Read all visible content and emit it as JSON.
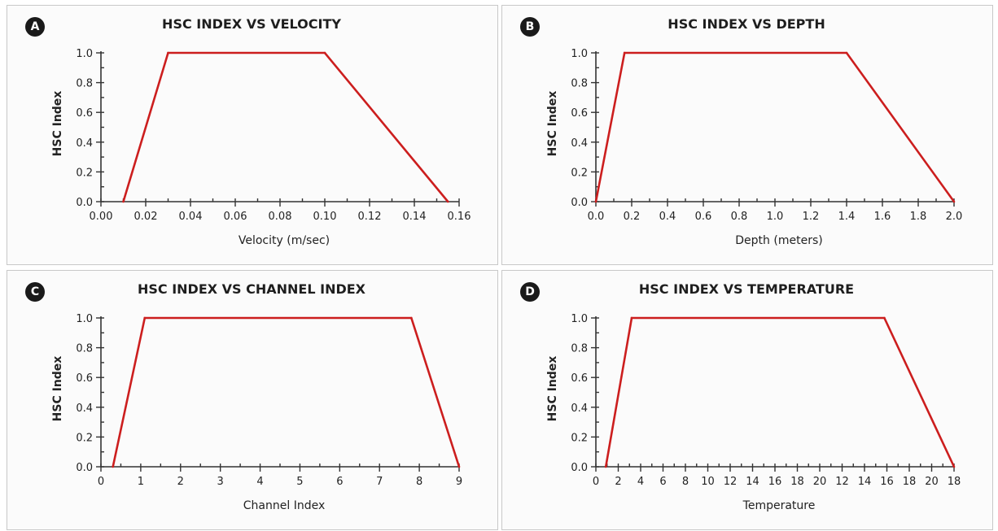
{
  "chart_data": [
    {
      "type": "line",
      "panel_label": "A",
      "title": "HSC INDEX VS VELOCITY",
      "xlabel": "Velocity (m/sec)",
      "ylabel": "HSC Index",
      "xlim": [
        0,
        0.16
      ],
      "ylim": [
        0,
        1.0
      ],
      "x_ticks": [
        "0.00",
        "0.02",
        "0.04",
        "0.06",
        "0.08",
        "0.10",
        "0.12",
        "0.14",
        "0.16"
      ],
      "y_ticks": [
        "0.0",
        "0.2",
        "0.4",
        "0.6",
        "0.8",
        "1.0"
      ],
      "x_minor_per_major": 2,
      "y_minor_per_major": 2,
      "grid": false,
      "line_color": "#cc1e1e",
      "series": [
        {
          "x": [
            0.01,
            0.03,
            0.1,
            0.155
          ],
          "y": [
            0.0,
            1.0,
            1.0,
            0.0
          ]
        }
      ]
    },
    {
      "type": "line",
      "panel_label": "B",
      "title": "HSC INDEX VS DEPTH",
      "xlabel": "Depth (meters)",
      "ylabel": "HSC Index",
      "xlim": [
        0,
        2.0
      ],
      "ylim": [
        0,
        1.0
      ],
      "x_ticks": [
        "0.0",
        "0.2",
        "0.4",
        "0.6",
        "0.8",
        "1.0",
        "1.2",
        "1.4",
        "1.6",
        "1.8",
        "2.0"
      ],
      "y_ticks": [
        "0.0",
        "0.2",
        "0.4",
        "0.6",
        "0.8",
        "1.0"
      ],
      "x_minor_per_major": 2,
      "y_minor_per_major": 2,
      "grid": false,
      "line_color": "#cc1e1e",
      "series": [
        {
          "x": [
            0.0,
            0.16,
            1.4,
            2.0
          ],
          "y": [
            0.0,
            1.0,
            1.0,
            0.0
          ]
        }
      ]
    },
    {
      "type": "line",
      "panel_label": "C",
      "title": "HSC INDEX VS CHANNEL INDEX",
      "xlabel": "Channel Index",
      "ylabel": "HSC Index",
      "xlim": [
        0,
        9
      ],
      "ylim": [
        0,
        1.0
      ],
      "x_ticks": [
        "0",
        "1",
        "2",
        "3",
        "4",
        "5",
        "6",
        "7",
        "8",
        "9"
      ],
      "y_ticks": [
        "0.0",
        "0.2",
        "0.4",
        "0.6",
        "0.8",
        "1.0"
      ],
      "x_minor_per_major": 2,
      "y_minor_per_major": 2,
      "grid": false,
      "line_color": "#cc1e1e",
      "series": [
        {
          "x": [
            0.3,
            1.1,
            7.8,
            9.0
          ],
          "y": [
            0.0,
            1.0,
            1.0,
            0.0
          ]
        }
      ]
    },
    {
      "type": "line",
      "panel_label": "D",
      "title": "HSC INDEX VS TEMPERATURE",
      "xlabel": "Temperature",
      "ylabel": "HSC Index",
      "xlim": [
        0,
        18
      ],
      "ylim": [
        0,
        1.0
      ],
      "x_ticks": [
        "0",
        "2",
        "4",
        "6",
        "8",
        "10",
        "12",
        "14",
        "16",
        "18",
        "20",
        "12",
        "14",
        "16",
        "18",
        "20",
        "18"
      ],
      "y_ticks": [
        "0.0",
        "0.2",
        "0.4",
        "0.6",
        "0.8",
        "1.0"
      ],
      "x_minor_per_major": 2,
      "y_minor_per_major": 2,
      "grid": false,
      "line_color": "#cc1e1e",
      "series": [
        {
          "x": [
            0.5,
            1.8,
            14.5,
            18.0
          ],
          "y": [
            0.0,
            1.0,
            1.0,
            0.0
          ]
        }
      ]
    }
  ]
}
